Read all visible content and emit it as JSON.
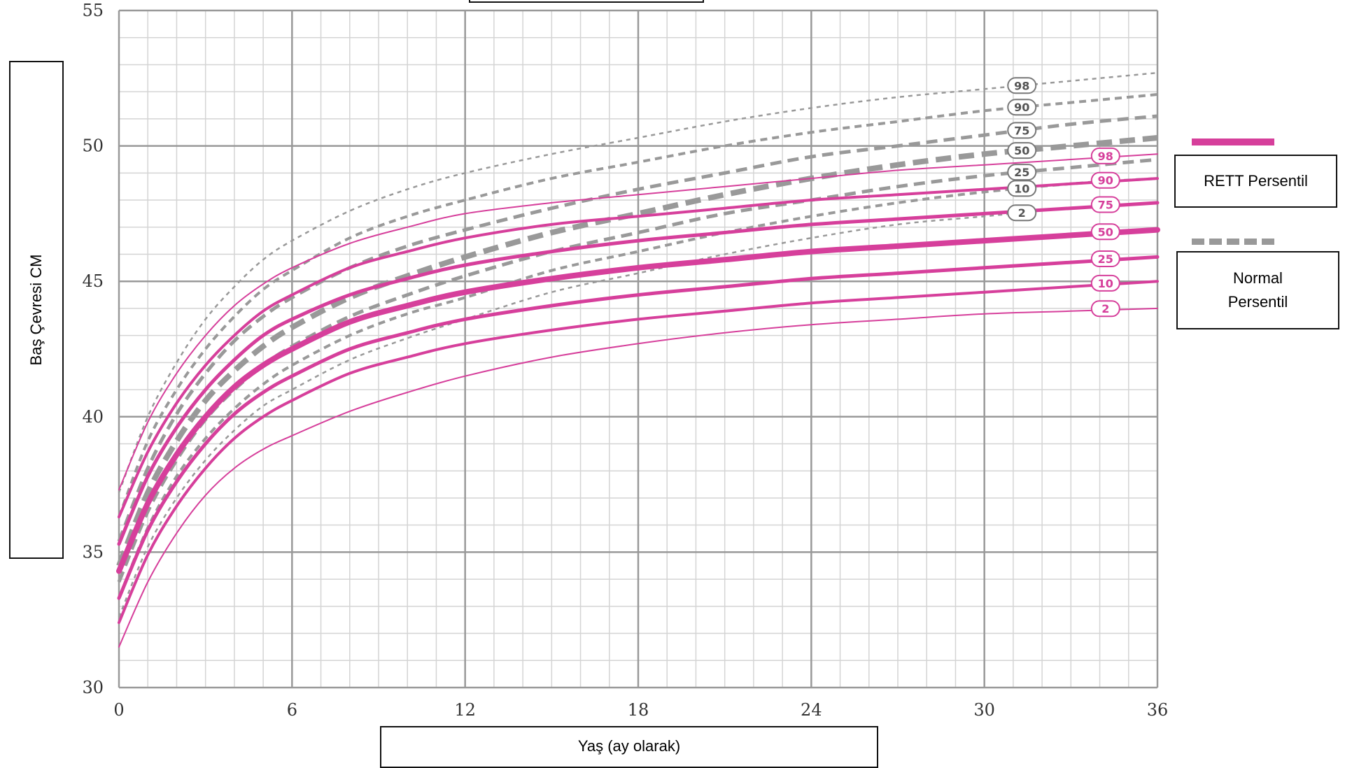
{
  "chart_data": {
    "type": "line",
    "title": "",
    "xlabel": "Yaş (ay olarak)",
    "ylabel": "Baş Çevresi CM",
    "xlim": [
      0,
      36
    ],
    "ylim": [
      30,
      55
    ],
    "x_ticks": [
      0,
      6,
      12,
      18,
      24,
      30,
      36
    ],
    "y_ticks": [
      30,
      35,
      40,
      45,
      50,
      55
    ],
    "grid": true,
    "legend_position": "right",
    "legend": [
      "RETT Persentil",
      "Normal Persentil"
    ],
    "colors": {
      "rett": "#d63f9b",
      "normal": "#999999",
      "grid_major": "#999999",
      "grid_minor": "#d4d4d4"
    },
    "x": [
      0,
      1,
      2,
      3,
      4,
      5,
      6,
      8,
      10,
      12,
      15,
      18,
      21,
      24,
      27,
      30,
      33,
      36
    ],
    "series": [
      {
        "group": "rett",
        "name": "98",
        "values": [
          37.3,
          39.8,
          41.6,
          43.0,
          44.1,
          44.9,
          45.5,
          46.4,
          47.0,
          47.5,
          47.9,
          48.2,
          48.5,
          48.8,
          49.1,
          49.3,
          49.5,
          49.7
        ]
      },
      {
        "group": "rett",
        "name": "90",
        "values": [
          36.3,
          38.7,
          40.5,
          41.9,
          43.0,
          43.9,
          44.5,
          45.5,
          46.1,
          46.6,
          47.1,
          47.4,
          47.7,
          48.0,
          48.2,
          48.4,
          48.6,
          48.8
        ]
      },
      {
        "group": "rett",
        "name": "75",
        "values": [
          35.3,
          37.8,
          39.6,
          41.0,
          42.1,
          43.0,
          43.6,
          44.5,
          45.1,
          45.6,
          46.1,
          46.5,
          46.8,
          47.1,
          47.3,
          47.5,
          47.7,
          47.9
        ]
      },
      {
        "group": "rett",
        "name": "50",
        "values": [
          34.3,
          36.8,
          38.6,
          40.0,
          41.1,
          41.9,
          42.5,
          43.5,
          44.1,
          44.6,
          45.1,
          45.5,
          45.8,
          46.1,
          46.3,
          46.5,
          46.7,
          46.9
        ]
      },
      {
        "group": "rett",
        "name": "25",
        "values": [
          33.3,
          35.8,
          37.6,
          39.0,
          40.1,
          40.9,
          41.5,
          42.5,
          43.1,
          43.6,
          44.1,
          44.5,
          44.8,
          45.1,
          45.3,
          45.5,
          45.7,
          45.9
        ]
      },
      {
        "group": "rett",
        "name": "10",
        "values": [
          32.4,
          34.9,
          36.7,
          38.1,
          39.2,
          40.0,
          40.6,
          41.6,
          42.2,
          42.7,
          43.2,
          43.6,
          43.9,
          44.2,
          44.4,
          44.6,
          44.8,
          45.0
        ]
      },
      {
        "group": "rett",
        "name": "2",
        "values": [
          31.5,
          33.9,
          35.7,
          37.1,
          38.1,
          38.8,
          39.3,
          40.2,
          40.9,
          41.5,
          42.2,
          42.7,
          43.1,
          43.4,
          43.6,
          43.8,
          43.9,
          44.0
        ]
      },
      {
        "group": "normal",
        "name": "98",
        "values": [
          37.2,
          40.0,
          42.0,
          43.6,
          44.8,
          45.8,
          46.5,
          47.6,
          48.4,
          49.0,
          49.7,
          50.3,
          50.9,
          51.4,
          51.8,
          52.1,
          52.4,
          52.7
        ]
      },
      {
        "group": "normal",
        "name": "90",
        "values": [
          36.3,
          39.1,
          41.0,
          42.5,
          43.7,
          44.7,
          45.4,
          46.6,
          47.4,
          48.0,
          48.8,
          49.4,
          50.0,
          50.5,
          50.9,
          51.3,
          51.6,
          51.9
        ]
      },
      {
        "group": "normal",
        "name": "75",
        "values": [
          35.4,
          38.1,
          40.1,
          41.6,
          42.8,
          43.7,
          44.4,
          45.5,
          46.3,
          46.9,
          47.7,
          48.4,
          49.0,
          49.6,
          50.0,
          50.4,
          50.8,
          51.1
        ]
      },
      {
        "group": "normal",
        "name": "50",
        "values": [
          34.5,
          37.2,
          39.1,
          40.6,
          41.7,
          42.6,
          43.3,
          44.4,
          45.2,
          45.9,
          46.8,
          47.5,
          48.2,
          48.8,
          49.3,
          49.7,
          50.0,
          50.3
        ]
      },
      {
        "group": "normal",
        "name": "25",
        "values": [
          33.9,
          36.5,
          38.4,
          39.9,
          41.0,
          41.9,
          42.6,
          43.7,
          44.5,
          45.2,
          46.1,
          46.8,
          47.5,
          48.0,
          48.5,
          48.9,
          49.2,
          49.5
        ]
      },
      {
        "group": "normal",
        "name": "10",
        "values": [
          33.3,
          35.9,
          37.8,
          39.2,
          40.3,
          41.2,
          41.9,
          43.0,
          43.8,
          44.4,
          45.4,
          46.1,
          46.8,
          47.4,
          47.9,
          48.3,
          48.6,
          48.8
        ]
      },
      {
        "group": "normal",
        "name": "2",
        "values": [
          32.6,
          35.2,
          37.0,
          38.4,
          39.5,
          40.4,
          41.0,
          42.1,
          42.9,
          43.6,
          44.6,
          45.3,
          46.0,
          46.6,
          47.1,
          47.4,
          47.7,
          47.9
        ]
      }
    ]
  }
}
